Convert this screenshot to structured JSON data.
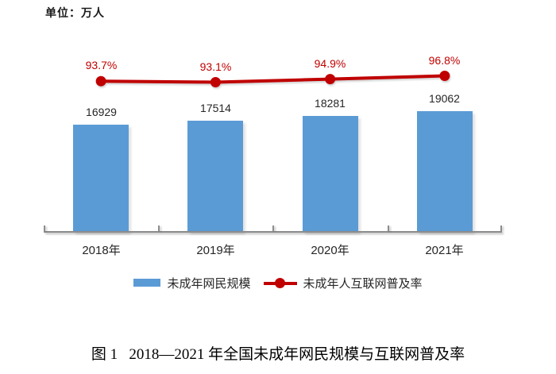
{
  "unit_label": "单位：万人",
  "caption": "图 1   2018—2021 年全国未成年网民规模与互联网普及率",
  "colors": {
    "bar": "#5b9bd5",
    "line": "#c00000",
    "axis": "#8c8c8c",
    "text": "#262626"
  },
  "chart_data": {
    "type": "bar",
    "combo_types": [
      "bar",
      "line"
    ],
    "categories": [
      "2018年",
      "2019年",
      "2020年",
      "2021年"
    ],
    "series": [
      {
        "name": "未成年网民规模",
        "type": "bar",
        "values": [
          16929,
          17514,
          18281,
          19062
        ],
        "value_labels": [
          "16929",
          "17514",
          "18281",
          "19062"
        ],
        "color": "#5b9bd5"
      },
      {
        "name": "未成年人互联网普及率",
        "type": "line",
        "values": [
          93.7,
          93.1,
          94.9,
          96.8
        ],
        "value_labels": [
          "93.7%",
          "93.1%",
          "94.9%",
          "96.8%"
        ],
        "color": "#c00000"
      }
    ],
    "unit": "万人",
    "title": "图 1   2018—2021 年全国未成年网民规模与互联网普及率",
    "xlabel": "",
    "ylabel": "",
    "ylim": [
      0,
      21000
    ],
    "secondary_ylim_percent": [
      90,
      100
    ],
    "grid": false,
    "legend_position": "bottom"
  }
}
